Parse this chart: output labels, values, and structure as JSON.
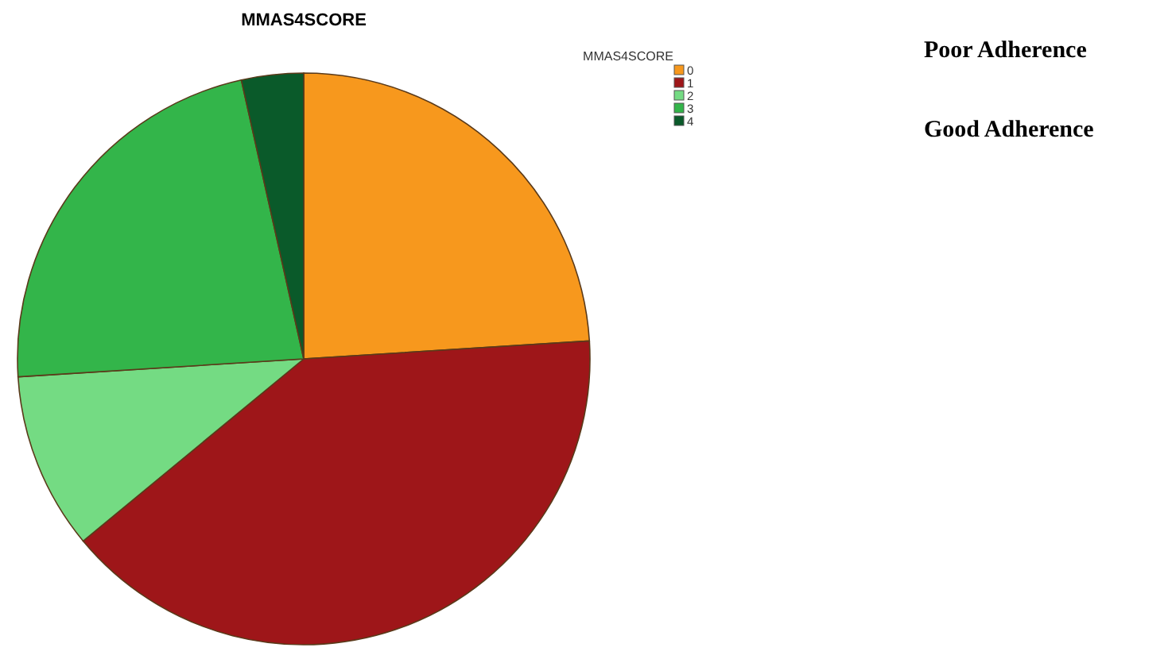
{
  "chart_data": {
    "type": "pie",
    "title": "MMAS4SCORE",
    "legend_title": "MMAS4SCORE",
    "legend": "top right",
    "categories": [
      "0",
      "1",
      "2",
      "3",
      "4"
    ],
    "values": [
      24,
      40,
      10,
      22.5,
      3.5
    ],
    "colors": [
      "#f7981d",
      "#9e1619",
      "#74db83",
      "#33b54a",
      "#0a5a2a"
    ],
    "annotations": [
      "Poor Adherence",
      "Good Adherence"
    ]
  }
}
